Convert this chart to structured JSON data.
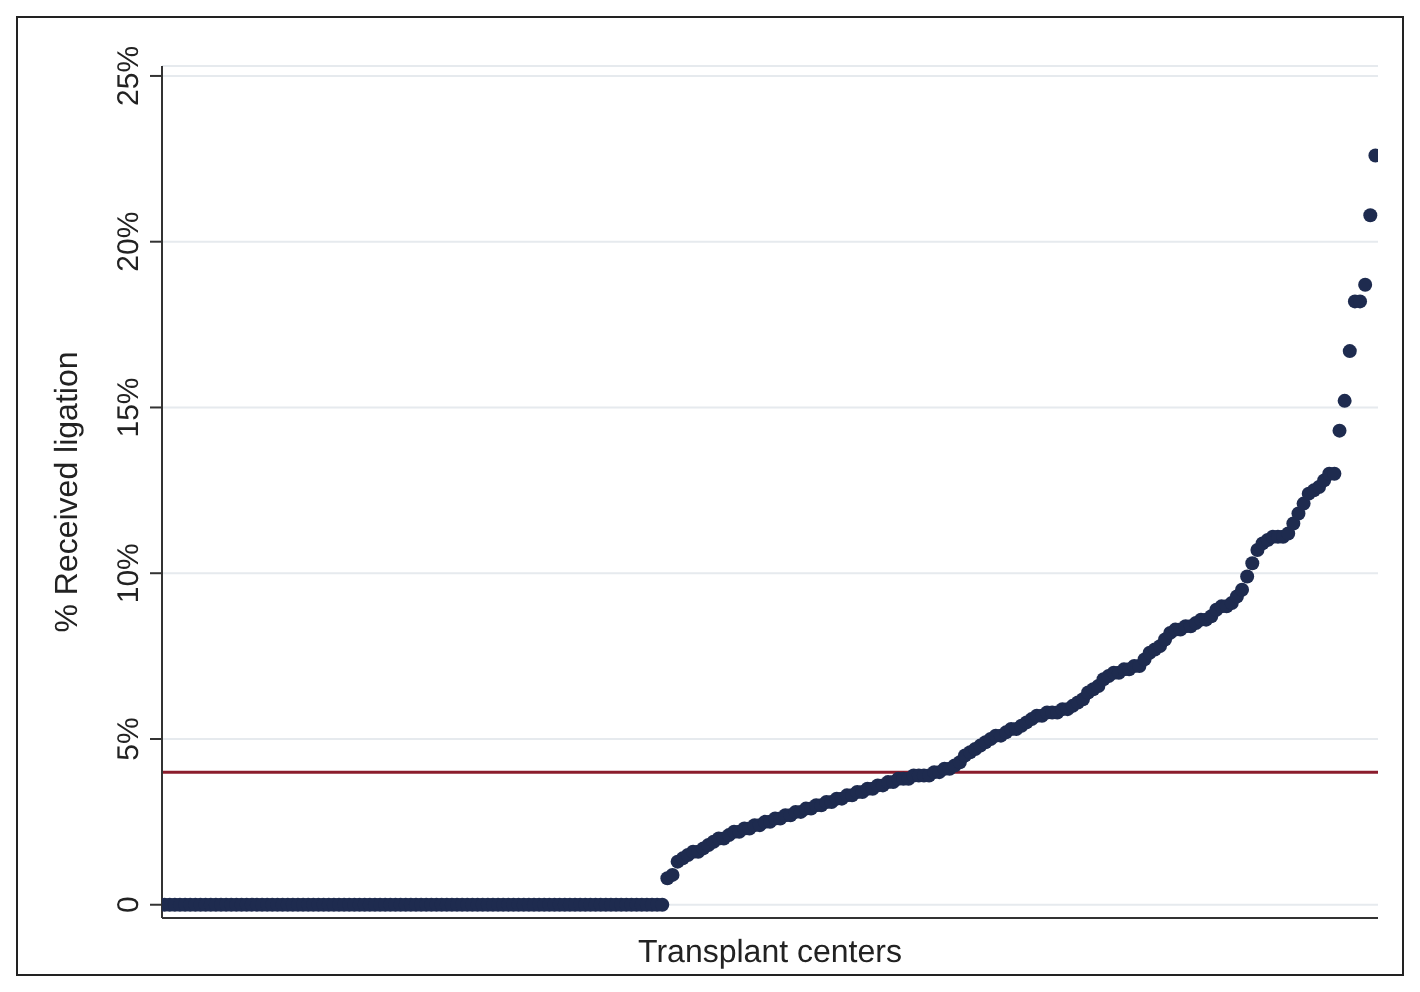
{
  "chart_data": {
    "type": "scatter",
    "xlabel": "Transplant centers",
    "ylabel": "% Received ligation",
    "categories": [
      null,
      null,
      null,
      null,
      null,
      null,
      null,
      null,
      null,
      null,
      null,
      null,
      null,
      null,
      null,
      null,
      null,
      null,
      null,
      null,
      null,
      null,
      null,
      null,
      null,
      null,
      null,
      null,
      null,
      null,
      null,
      null,
      null,
      null,
      null,
      null,
      null,
      null,
      null,
      null,
      null,
      null,
      null,
      null,
      null,
      null,
      null,
      null,
      null,
      null,
      null,
      null,
      null,
      null,
      null,
      null,
      null,
      null,
      null,
      null,
      null,
      null,
      null,
      null,
      null,
      null,
      null,
      null,
      null,
      null,
      null,
      null,
      null,
      null,
      null,
      null,
      null,
      null,
      null,
      null,
      null,
      null,
      null,
      null,
      null,
      null,
      null,
      null,
      null,
      null,
      null,
      null,
      null,
      null,
      null,
      null,
      null,
      null,
      null,
      null,
      null,
      null,
      null,
      null,
      null,
      null,
      null,
      null,
      null,
      null,
      null,
      null,
      null,
      null,
      null,
      null,
      null,
      null,
      null,
      null,
      null,
      null,
      null,
      null,
      null,
      null,
      null,
      null,
      null,
      null,
      null,
      null,
      null,
      null,
      null,
      null,
      null,
      null,
      null,
      null,
      null,
      null,
      null,
      null,
      null,
      null,
      null,
      null,
      null,
      null,
      null,
      null,
      null,
      null,
      null,
      null,
      null,
      null,
      null,
      null,
      null,
      null,
      null,
      null,
      null,
      null,
      null,
      null,
      null,
      null,
      null,
      null,
      null,
      null,
      null,
      null,
      null,
      null,
      null,
      null,
      null,
      null,
      null,
      null,
      null,
      null,
      null,
      null,
      null,
      null,
      null,
      null,
      null,
      null,
      null,
      null,
      null,
      null,
      null,
      null,
      null,
      null,
      null,
      null,
      null,
      null,
      null,
      null,
      null,
      null,
      null,
      null,
      null,
      null,
      null,
      null,
      null,
      null,
      null,
      null,
      null,
      null,
      null,
      null,
      null,
      null,
      null,
      null,
      null,
      null,
      null,
      null,
      null,
      null,
      null,
      null,
      null
    ],
    "series": [
      {
        "color": "#1e2b4f",
        "values": [
          0,
          0,
          0,
          0,
          0,
          0,
          0,
          0,
          0,
          0,
          0,
          0,
          0,
          0,
          0,
          0,
          0,
          0,
          0,
          0,
          0,
          0,
          0,
          0,
          0,
          0,
          0,
          0,
          0,
          0,
          0,
          0,
          0,
          0,
          0,
          0,
          0,
          0,
          0,
          0,
          0,
          0,
          0,
          0,
          0,
          0,
          0,
          0,
          0,
          0,
          0,
          0,
          0,
          0,
          0,
          0,
          0,
          0,
          0,
          0,
          0,
          0,
          0,
          0,
          0,
          0,
          0,
          0,
          0,
          0,
          0,
          0,
          0,
          0,
          0,
          0,
          0,
          0,
          0,
          0,
          0,
          0,
          0,
          0,
          0,
          0,
          0,
          0,
          0,
          0,
          0,
          0,
          0,
          0,
          0,
          0,
          0,
          0,
          0.8,
          0.9,
          1.3,
          1.4,
          1.5,
          1.6,
          1.6,
          1.7,
          1.8,
          1.9,
          2.0,
          2.0,
          2.1,
          2.2,
          2.2,
          2.3,
          2.3,
          2.4,
          2.4,
          2.5,
          2.5,
          2.6,
          2.6,
          2.7,
          2.7,
          2.8,
          2.8,
          2.9,
          2.9,
          3.0,
          3.0,
          3.1,
          3.1,
          3.2,
          3.2,
          3.3,
          3.3,
          3.4,
          3.4,
          3.5,
          3.5,
          3.6,
          3.6,
          3.7,
          3.7,
          3.8,
          3.8,
          3.8,
          3.9,
          3.9,
          3.9,
          3.9,
          4.0,
          4.0,
          4.1,
          4.1,
          4.2,
          4.3,
          4.5,
          4.6,
          4.7,
          4.8,
          4.9,
          5.0,
          5.1,
          5.1,
          5.2,
          5.3,
          5.3,
          5.4,
          5.5,
          5.6,
          5.7,
          5.7,
          5.8,
          5.8,
          5.8,
          5.9,
          5.9,
          6.0,
          6.1,
          6.2,
          6.4,
          6.5,
          6.6,
          6.8,
          6.9,
          7.0,
          7.0,
          7.1,
          7.1,
          7.2,
          7.2,
          7.4,
          7.6,
          7.7,
          7.8,
          8.0,
          8.2,
          8.3,
          8.3,
          8.4,
          8.4,
          8.5,
          8.6,
          8.6,
          8.7,
          8.9,
          9.0,
          9.0,
          9.1,
          9.3,
          9.5,
          9.9,
          10.3,
          10.7,
          10.9,
          11.0,
          11.1,
          11.1,
          11.1,
          11.2,
          11.5,
          11.8,
          12.1,
          12.4,
          12.5,
          12.6,
          12.8,
          13.0,
          13.0,
          14.3,
          15.2,
          16.7,
          18.2,
          18.2,
          18.7,
          20.8,
          22.6
        ]
      }
    ],
    "ylim": [
      -0.4,
      25.3
    ],
    "yticks": [
      {
        "value": 0,
        "label": "0"
      },
      {
        "value": 5,
        "label": "5%"
      },
      {
        "value": 10,
        "label": "10%"
      },
      {
        "value": 15,
        "label": "15%"
      },
      {
        "value": 20,
        "label": "20%"
      },
      {
        "value": 25,
        "label": "25%"
      }
    ],
    "ref_lines": [
      {
        "axis": "y",
        "value": 4,
        "color": "#8b1c2c"
      }
    ],
    "grid": "y",
    "marker": "circle",
    "legend": false
  }
}
